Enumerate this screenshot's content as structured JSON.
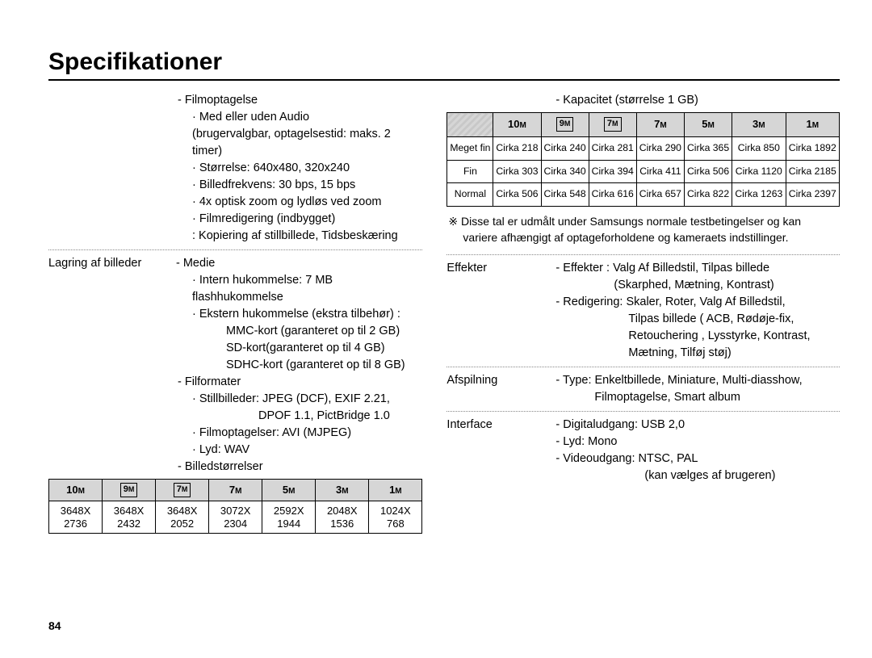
{
  "title": "Specifikationer",
  "pageNumber": "84",
  "colors": {
    "text": "#000000",
    "background": "#ffffff",
    "headerGrey": "#d6d6d6",
    "dotGrey": "#888888"
  },
  "left": {
    "film": {
      "l1": "- Filmoptagelse",
      "l2": "· Med eller uden Audio",
      "l3": "(brugervalgbar, optagelsestid: maks. 2 timer)",
      "l4": "· Størrelse: 640x480, 320x240",
      "l5": "· Billedfrekvens: 30 bps, 15 bps",
      "l6": "· 4x optisk zoom og lydløs ved zoom",
      "l7": "· Filmredigering (indbygget)",
      "l8": ": Kopiering af stillbillede, Tidsbeskæring"
    },
    "storageLabel": "Lagring af billeder",
    "storage": {
      "l1": "- Medie",
      "l2": "· Intern hukommelse: 7 MB flashhukommelse",
      "l3": "· Ekstern hukommelse (ekstra tilbehør) :",
      "l4": "MMC-kort (garanteret op til 2 GB)",
      "l5": "SD-kort(garanteret op til 4 GB)",
      "l6": "SDHC-kort (garanteret op til 8 GB)",
      "l7": "- Filformater",
      "l8": "· Stillbilleder: JPEG (DCF), EXIF 2.21,",
      "l9": "DPOF 1.1, PictBridge 1.0",
      "l10": "· Filmoptagelser: AVI (MJPEG)",
      "l11": "· Lyd: WAV",
      "l12": "- Billedstørrelser"
    },
    "sizeTable": {
      "headers": [
        "10ᴍ",
        "9ᴍ",
        "7ᴍ",
        "7ᴍ",
        "5ᴍ",
        "3ᴍ",
        "1ᴍ"
      ],
      "headerBoxed": [
        false,
        true,
        true,
        false,
        false,
        false,
        false
      ],
      "rows": [
        [
          "3648X 2736",
          "3648X 2432",
          "3648X 2052",
          "3072X 2304",
          "2592X 1944",
          "2048X 1536",
          "1024X 768"
        ]
      ]
    }
  },
  "right": {
    "capLabel": "- Kapacitet (størrelse 1 GB)",
    "capTable": {
      "headers": [
        "",
        "10ᴍ",
        "9ᴍ",
        "7ᴍ",
        "7ᴍ",
        "5ᴍ",
        "3ᴍ",
        "1ᴍ"
      ],
      "headerBoxed": [
        false,
        false,
        true,
        true,
        false,
        false,
        false,
        false
      ],
      "rows": [
        {
          "label": "Meget fin",
          "cells": [
            "Cirka 218",
            "Cirka 240",
            "Cirka 281",
            "Cirka 290",
            "Cirka 365",
            "Cirka 850",
            "Cirka 1892"
          ]
        },
        {
          "label": "Fin",
          "cells": [
            "Cirka 303",
            "Cirka 340",
            "Cirka 394",
            "Cirka 411",
            "Cirka 506",
            "Cirka 1120",
            "Cirka 2185"
          ]
        },
        {
          "label": "Normal",
          "cells": [
            "Cirka 506",
            "Cirka 548",
            "Cirka 616",
            "Cirka 657",
            "Cirka 822",
            "Cirka 1263",
            "Cirka 2397"
          ]
        }
      ]
    },
    "note1": "※ Disse tal er udmålt under Samsungs normale testbetingelser og kan",
    "note2": "variere afhængigt af optageforholdene og kameraets indstillinger.",
    "effekterLabel": "Effekter",
    "effekter": {
      "l1": "- Effekter : Valg Af Billedstil, Tilpas billede",
      "l2": "(Skarphed, Mætning, Kontrast)",
      "l3": "- Redigering: Skaler, Roter, Valg Af Billedstil,",
      "l4": "Tilpas billede ( ACB, Rødøje-fix,",
      "l5": "Retouchering , Lysstyrke, Kontrast,",
      "l6": "Mætning, Tilføj støj)"
    },
    "afspilLabel": "Afspilning",
    "afspil": {
      "l1": "- Type: Enkeltbillede, Miniature, Multi-diasshow,",
      "l2": "Filmoptagelse, Smart album"
    },
    "interfaceLabel": "Interface",
    "iface": {
      "l1": "- Digitaludgang: USB 2,0",
      "l2": "- Lyd: Mono",
      "l3": "- Videoudgang: NTSC, PAL",
      "l4": "(kan vælges af brugeren)"
    }
  }
}
